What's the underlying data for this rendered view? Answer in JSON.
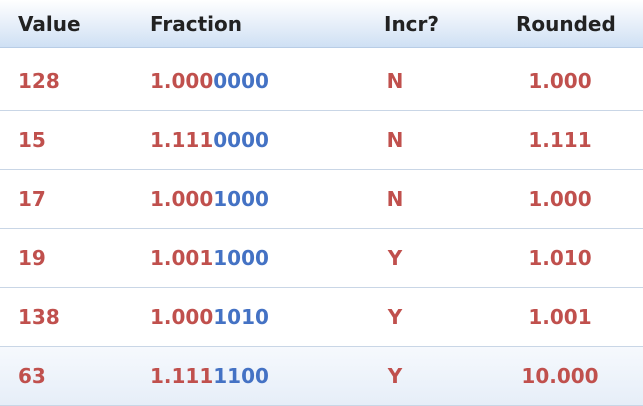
{
  "columns": [
    "Value",
    "Fraction",
    "Incr?",
    "Rounded"
  ],
  "colors": {
    "accent_red": "#c0504d",
    "accent_blue": "#4472c4"
  },
  "rows": [
    {
      "value": "128",
      "frac_head": "1.000",
      "frac_tail": "0000",
      "incr": "N",
      "rounded": "1.000"
    },
    {
      "value": "15",
      "frac_head": "1.111",
      "frac_tail": "0000",
      "incr": "N",
      "rounded": "1.111"
    },
    {
      "value": "17",
      "frac_head": "1.000",
      "frac_tail": "1000",
      "incr": "N",
      "rounded": "1.000"
    },
    {
      "value": "19",
      "frac_head": "1.001",
      "frac_tail": "1000",
      "incr": "Y",
      "rounded": "1.010"
    },
    {
      "value": "138",
      "frac_head": "1.000",
      "frac_tail": "1010",
      "incr": "Y",
      "rounded": "1.001"
    },
    {
      "value": "63",
      "frac_head": "1.111",
      "frac_tail": "1100",
      "incr": "Y",
      "rounded": "10.000"
    }
  ]
}
